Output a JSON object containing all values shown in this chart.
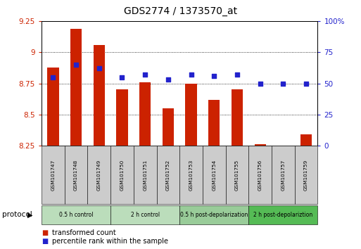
{
  "title": "GDS2774 / 1373570_at",
  "samples": [
    "GSM101747",
    "GSM101748",
    "GSM101749",
    "GSM101750",
    "GSM101751",
    "GSM101752",
    "GSM101753",
    "GSM101754",
    "GSM101755",
    "GSM101756",
    "GSM101757",
    "GSM101759"
  ],
  "transformed_count": [
    8.88,
    9.19,
    9.06,
    8.7,
    8.76,
    8.55,
    8.75,
    8.62,
    8.7,
    8.26,
    8.24,
    8.34
  ],
  "percentile_rank": [
    55,
    65,
    62,
    55,
    57,
    53,
    57,
    56,
    57,
    50,
    50,
    50
  ],
  "ylim_left": [
    8.25,
    9.25
  ],
  "ylim_right": [
    0,
    100
  ],
  "yticks_left": [
    8.25,
    8.5,
    8.75,
    9.0,
    9.25
  ],
  "yticks_right": [
    0,
    25,
    50,
    75,
    100
  ],
  "ytick_labels_left": [
    "8.25",
    "8.5",
    "8.75",
    "9",
    "9.25"
  ],
  "ytick_labels_right": [
    "0",
    "25",
    "50",
    "75",
    "100%"
  ],
  "bar_color": "#cc2200",
  "dot_color": "#2222cc",
  "bar_width": 0.5,
  "dot_size": 25,
  "protocols": [
    {
      "label": "0.5 h control",
      "start": 0,
      "end": 3,
      "color": "#bbddbb"
    },
    {
      "label": "2 h control",
      "start": 3,
      "end": 6,
      "color": "#bbddbb"
    },
    {
      "label": "0.5 h post-depolarization",
      "start": 6,
      "end": 9,
      "color": "#99cc99"
    },
    {
      "label": "2 h post-depolariztion",
      "start": 9,
      "end": 12,
      "color": "#55bb55"
    }
  ],
  "protocol_label": "protocol",
  "legend_items": [
    {
      "label": "transformed count",
      "color": "#cc2200"
    },
    {
      "label": "percentile rank within the sample",
      "color": "#2222cc"
    }
  ],
  "tick_label_color_left": "#cc2200",
  "tick_label_color_right": "#2222cc",
  "label_bg_color": "#cccccc"
}
